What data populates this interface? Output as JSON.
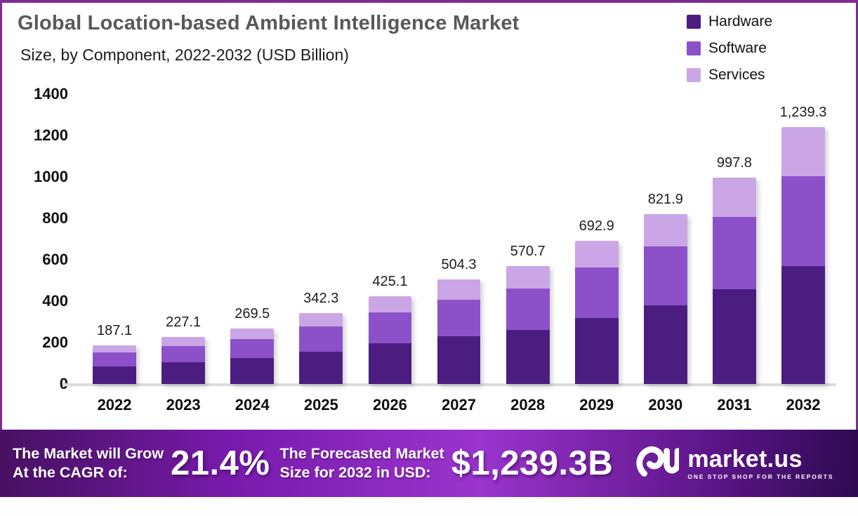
{
  "header": {
    "title": "Global Location-based Ambient Intelligence Market",
    "subtitle": "Size, by Component, 2022-2032 (USD Billion)"
  },
  "legend": {
    "items": [
      {
        "label": "Hardware",
        "color": "#4b1d80"
      },
      {
        "label": "Software",
        "color": "#8c51c9"
      },
      {
        "label": "Services",
        "color": "#cba6e6"
      }
    ]
  },
  "chart_data": {
    "type": "bar",
    "subtype": "stacked-vertical",
    "title": "Global Location-based Ambient Intelligence Market Size, by Component, 2022-2032 (USD Billion)",
    "xlabel": "",
    "ylabel": "",
    "ylim": [
      0,
      1400
    ],
    "y_ticks": [
      0,
      200,
      400,
      600,
      800,
      1000,
      1200,
      1400
    ],
    "grid": false,
    "legend_position": "top-right",
    "categories": [
      "2022",
      "2023",
      "2024",
      "2025",
      "2026",
      "2027",
      "2028",
      "2029",
      "2030",
      "2031",
      "2032"
    ],
    "totals": [
      187.1,
      227.1,
      269.5,
      342.3,
      425.1,
      504.3,
      570.7,
      692.9,
      821.9,
      997.8,
      1239.3
    ],
    "total_labels": [
      "187.1",
      "227.1",
      "269.5",
      "342.3",
      "425.1",
      "504.3",
      "570.7",
      "692.9",
      "821.9",
      "997.8",
      "1,239.3"
    ],
    "series": [
      {
        "name": "Hardware",
        "color": "#4b1d80",
        "values": [
          86.0,
          104.5,
          124.0,
          157.5,
          195.5,
          232.0,
          262.5,
          318.8,
          378.1,
          459.0,
          570.1
        ],
        "note": "segment values estimated from bar pixel heights; only stack totals are labeled in the image"
      },
      {
        "name": "Software",
        "color": "#8c51c9",
        "values": [
          65.6,
          79.5,
          94.3,
          119.8,
          148.8,
          176.5,
          199.8,
          242.5,
          287.7,
          349.2,
          433.8
        ],
        "note": "estimated"
      },
      {
        "name": "Services",
        "color": "#cba6e6",
        "values": [
          35.5,
          43.1,
          51.2,
          65.0,
          80.8,
          95.8,
          108.4,
          131.6,
          156.1,
          189.6,
          235.4
        ],
        "note": "estimated"
      }
    ]
  },
  "banner": {
    "cagr_label_line1": "The Market will Grow",
    "cagr_label_line2": "At the CAGR of:",
    "cagr_value": "21.4%",
    "forecast_label_line1": "The Forecasted Market",
    "forecast_label_line2": "Size for 2032 in USD:",
    "forecast_value": "$1,239.3B",
    "brand_name": "market.us",
    "brand_tagline": "ONE STOP SHOP FOR THE REPORTS"
  },
  "colors": {
    "panel_border": "#7d2d92",
    "title_text": "#58595b",
    "baseline": "#dcdcdc",
    "banner_gradient": [
      "#471061",
      "#9a34cd",
      "#2e0a51"
    ],
    "hardware": "#4b1d80",
    "software": "#8c51c9",
    "services": "#cba6e6"
  }
}
